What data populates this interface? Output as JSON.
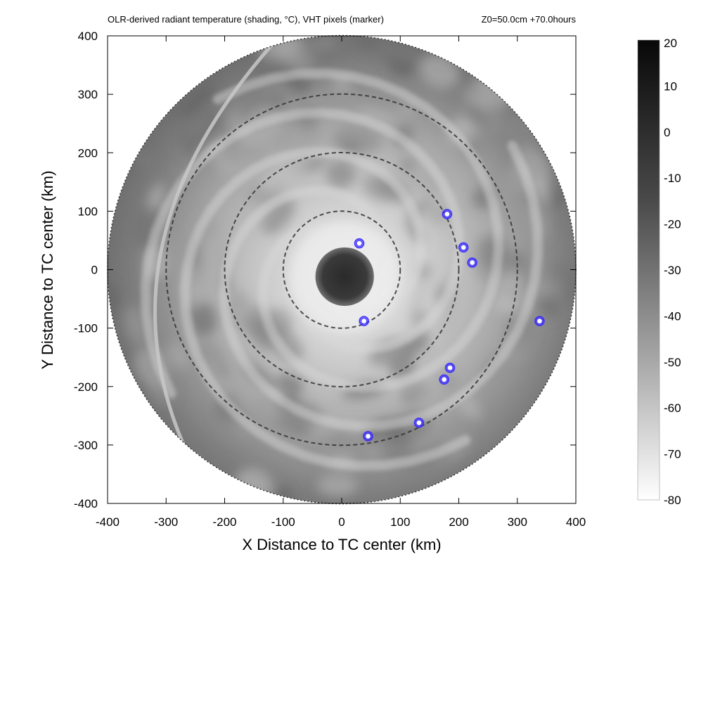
{
  "chart_data": {
    "type": "heatmap",
    "title": "OLR-derived radiant temperature (shading, °C), VHT pixels (marker)",
    "subtitle": "Z0=50.0cm  +70.0hours",
    "xlabel": "X Distance to TC center (km)",
    "ylabel": "Y Distance to TC center (km)",
    "xlim": [
      -400,
      400
    ],
    "ylim": [
      -400,
      400
    ],
    "xticks": [
      -400,
      -300,
      -200,
      -100,
      0,
      100,
      200,
      300,
      400
    ],
    "yticks": [
      -400,
      -300,
      -200,
      -100,
      0,
      100,
      200,
      300,
      400
    ],
    "domain_radius_km": 400,
    "range_rings_km": [
      100,
      200,
      300
    ],
    "colorbar": {
      "range": [
        -80,
        20
      ],
      "ticks": [
        20,
        10,
        0,
        -10,
        -20,
        -30,
        -40,
        -50,
        -60,
        -70,
        -80
      ],
      "colormap": "white (cold) to black (warm) grayscale"
    },
    "eye": {
      "x": 5,
      "y": -12,
      "radius_km": 50
    },
    "vht_markers": [
      {
        "x": 30,
        "y": 45
      },
      {
        "x": 38,
        "y": -88
      },
      {
        "x": 180,
        "y": 95
      },
      {
        "x": 208,
        "y": 38
      },
      {
        "x": 223,
        "y": 12
      },
      {
        "x": 185,
        "y": -168
      },
      {
        "x": 175,
        "y": -188
      },
      {
        "x": 132,
        "y": -262
      },
      {
        "x": 45,
        "y": -285
      },
      {
        "x": 338,
        "y": -88
      }
    ],
    "marker_color": "#3a2cff",
    "grid": false
  }
}
